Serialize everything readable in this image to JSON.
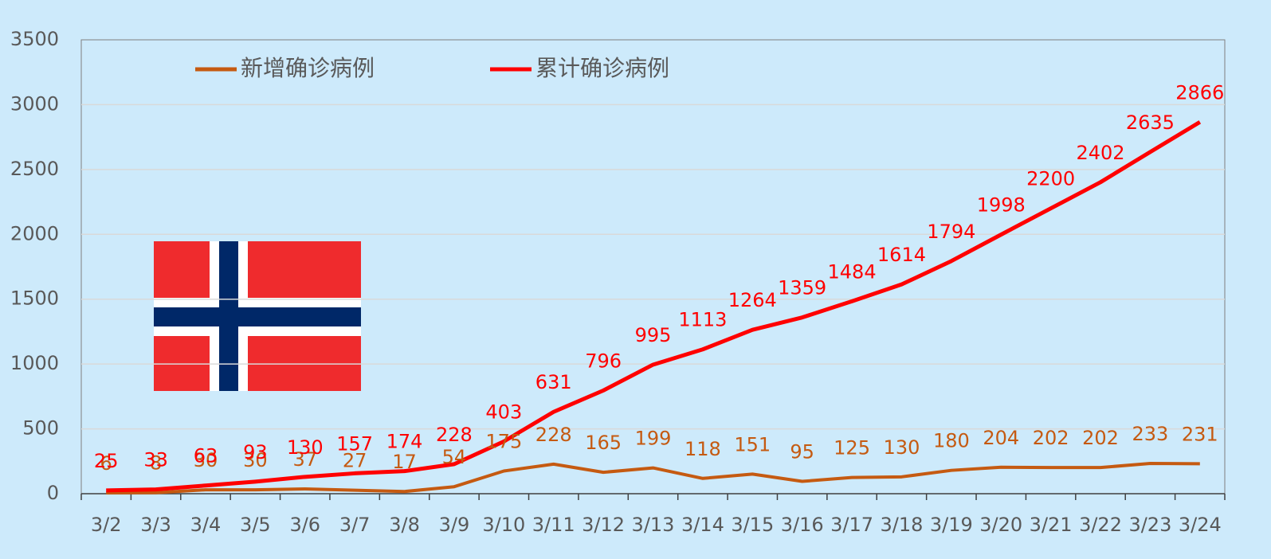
{
  "chart_data": {
    "type": "line",
    "categories": [
      "3/2",
      "3/3",
      "3/4",
      "3/5",
      "3/6",
      "3/7",
      "3/8",
      "3/9",
      "3/10",
      "3/11",
      "3/12",
      "3/13",
      "3/14",
      "3/15",
      "3/16",
      "3/17",
      "3/18",
      "3/19",
      "3/20",
      "3/21",
      "3/22",
      "3/23",
      "3/24"
    ],
    "series": [
      {
        "name": "新增确诊病例",
        "color": "#c55a11",
        "values": [
          6,
          8,
          30,
          30,
          37,
          27,
          17,
          54,
          175,
          228,
          165,
          199,
          118,
          151,
          95,
          125,
          130,
          180,
          204,
          202,
          202,
          233,
          231
        ]
      },
      {
        "name": "累计确诊病例",
        "color": "#ff0000",
        "values": [
          25,
          33,
          63,
          93,
          130,
          157,
          174,
          228,
          403,
          631,
          796,
          995,
          1113,
          1264,
          1359,
          1484,
          1614,
          1794,
          1998,
          2200,
          2402,
          2635,
          2866
        ]
      }
    ],
    "ylim": [
      0,
      3500
    ],
    "yticks": [
      0,
      500,
      1000,
      1500,
      2000,
      2500,
      3000,
      3500
    ],
    "grid": true
  }
}
